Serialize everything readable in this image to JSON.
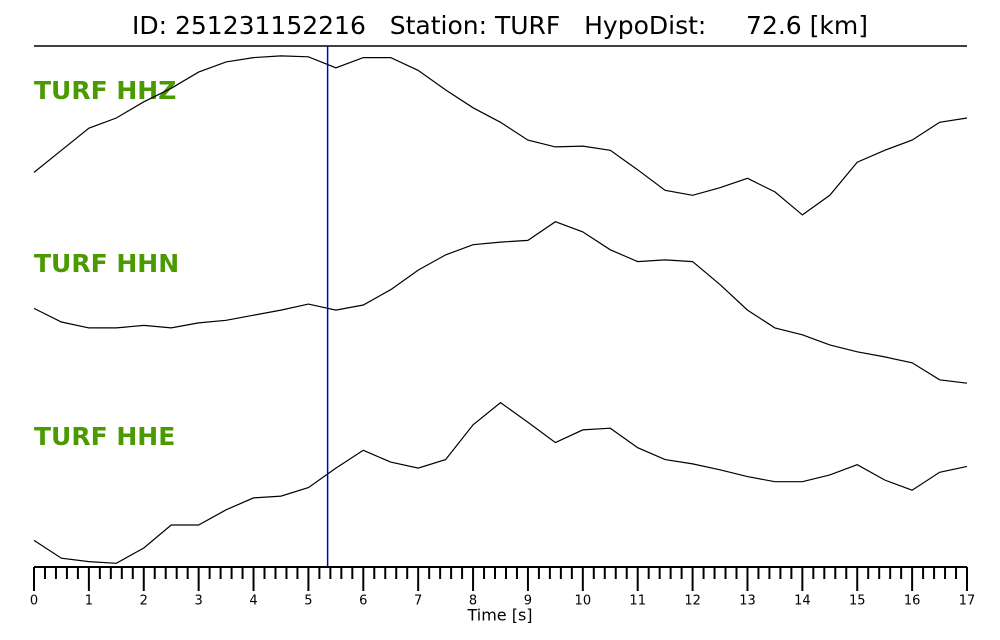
{
  "chart_data": {
    "type": "line",
    "title": "ID: 251231152216   Station: TURF   HypoDist:     72.6 [km]",
    "xlabel": "Time [s]",
    "xlim": [
      0,
      17
    ],
    "xticks": [
      0,
      1,
      2,
      3,
      4,
      5,
      6,
      7,
      8,
      9,
      10,
      11,
      12,
      13,
      14,
      15,
      16,
      17
    ],
    "xminorticks": [
      0.2,
      0.4,
      0.6,
      0.8,
      1.2,
      1.4,
      1.6,
      1.8,
      2.2,
      2.4,
      2.6,
      2.8,
      3.2,
      3.4,
      3.6,
      3.8,
      4.2,
      4.4,
      4.6,
      4.8,
      5.2,
      5.4,
      5.6,
      5.8,
      6.2,
      6.4,
      6.6,
      6.8,
      7.2,
      7.4,
      7.6,
      7.8,
      8.2,
      8.4,
      8.6,
      8.8,
      9.2,
      9.4,
      9.6,
      9.8,
      10.2,
      10.4,
      10.6,
      10.8,
      11.2,
      11.4,
      11.6,
      11.8,
      12.2,
      12.4,
      12.6,
      12.8,
      13.2,
      13.4,
      13.6,
      13.8,
      14.2,
      14.4,
      14.6,
      14.8,
      15.2,
      15.4,
      15.6,
      15.8,
      16.2,
      16.4,
      16.6,
      16.8
    ],
    "ylim": [
      -1,
      1
    ],
    "pick": {
      "x": 5.35,
      "color": "#0000cc"
    },
    "label_color": "#4a9a00",
    "x": [
      0,
      0.5,
      1,
      1.5,
      2,
      2.5,
      3,
      3.5,
      4,
      4.5,
      5,
      5.5,
      6,
      6.5,
      7,
      7.5,
      8,
      8.5,
      9,
      9.5,
      10,
      10.5,
      11,
      11.5,
      12,
      12.5,
      13,
      13.5,
      14,
      14.5,
      15,
      15.5,
      16,
      16.5,
      17
    ],
    "series": [
      {
        "name": "TURF HHZ",
        "color": "#000000",
        "values": [
          -0.44,
          -0.18,
          0.08,
          0.2,
          0.39,
          0.55,
          0.74,
          0.86,
          0.91,
          0.93,
          0.92,
          0.79,
          0.91,
          0.91,
          0.76,
          0.53,
          0.32,
          0.15,
          -0.06,
          -0.14,
          -0.13,
          -0.18,
          -0.41,
          -0.65,
          -0.71,
          -0.62,
          -0.51,
          -0.67,
          -0.94,
          -0.71,
          -0.32,
          -0.18,
          -0.06,
          0.15,
          0.2
        ]
      },
      {
        "name": "TURF HHN",
        "color": "#000000",
        "values": [
          -0.04,
          -0.2,
          -0.27,
          -0.27,
          -0.24,
          -0.27,
          -0.21,
          -0.18,
          -0.12,
          -0.06,
          0.01,
          -0.06,
          0,
          0.18,
          0.41,
          0.59,
          0.71,
          0.74,
          0.76,
          0.98,
          0.86,
          0.65,
          0.51,
          0.53,
          0.51,
          0.24,
          -0.06,
          -0.27,
          -0.35,
          -0.47,
          -0.55,
          -0.61,
          -0.68,
          -0.88,
          -0.92
        ]
      },
      {
        "name": "TURF HHE",
        "color": "#000000",
        "values": [
          -0.71,
          -0.92,
          -0.96,
          -0.98,
          -0.8,
          -0.53,
          -0.53,
          -0.35,
          -0.21,
          -0.19,
          -0.09,
          0.14,
          0.35,
          0.21,
          0.14,
          0.24,
          0.65,
          0.91,
          0.68,
          0.44,
          0.59,
          0.61,
          0.38,
          0.24,
          0.19,
          0.12,
          0.04,
          -0.02,
          -0.02,
          0.06,
          0.18,
          0,
          -0.12,
          0.09,
          0.16
        ]
      }
    ]
  }
}
